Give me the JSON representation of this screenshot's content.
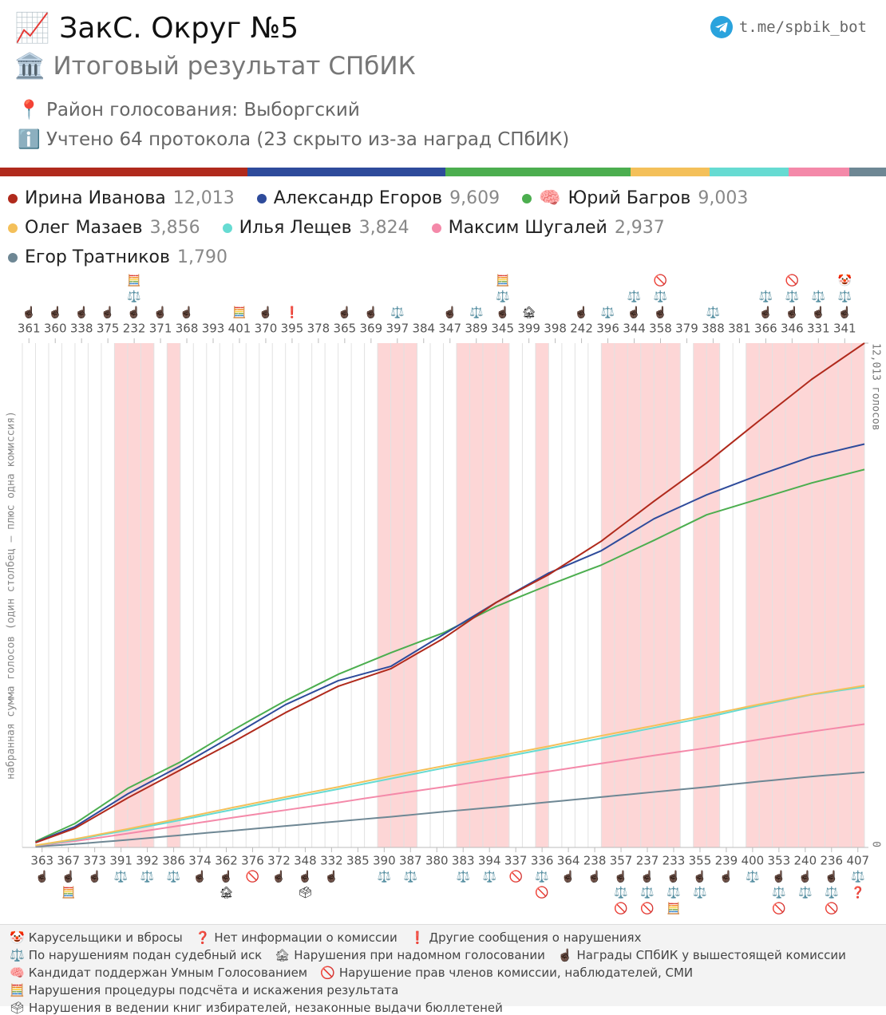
{
  "header": {
    "title_icon": "📈",
    "title": "ЗакС. Округ №5",
    "subtitle_icon": "🏛️",
    "subtitle": "Итоговый результат СПбИК",
    "district_icon": "📍",
    "district": "Район голосования: Выборгский",
    "count_icon": "ℹ️",
    "count": "Учтено 64 протокола (23 скрыто из-за наград СПбИК)",
    "link": "t.me/spbik_bot"
  },
  "chart_data": {
    "type": "line",
    "y_label": "набранная сумма голосов (один столбец – плюс одна комиссия)",
    "ylim": [
      0,
      12013
    ],
    "yticks": [
      0,
      {
        "value": 12013,
        "label": "12,013 голосов"
      }
    ],
    "shade_color": "#fdd6d6",
    "categories": [
      "361",
      "363",
      "360",
      "367",
      "338",
      "373",
      "375",
      "391",
      "232",
      "392",
      "371",
      "386",
      "368",
      "374",
      "393",
      "362",
      "401",
      "376",
      "370",
      "372",
      "395",
      "348",
      "378",
      "332",
      "365",
      "385",
      "369",
      "390",
      "397",
      "387",
      "384",
      "380",
      "347",
      "383",
      "389",
      "394",
      "345",
      "337",
      "399",
      "336",
      "398",
      "364",
      "242",
      "238",
      "396",
      "357",
      "344",
      "237",
      "358",
      "233",
      "379",
      "355",
      "388",
      "239",
      "381",
      "400",
      "366",
      "353",
      "346",
      "240",
      "331",
      "236",
      "341",
      "407"
    ],
    "shaded": [
      false,
      false,
      false,
      false,
      false,
      false,
      false,
      true,
      true,
      true,
      false,
      true,
      false,
      false,
      false,
      false,
      false,
      false,
      false,
      false,
      false,
      false,
      false,
      false,
      false,
      false,
      false,
      true,
      true,
      true,
      false,
      false,
      false,
      true,
      true,
      true,
      true,
      false,
      false,
      true,
      false,
      false,
      false,
      false,
      true,
      true,
      true,
      true,
      true,
      true,
      false,
      true,
      true,
      false,
      false,
      true,
      true,
      true,
      true,
      true,
      true,
      true,
      true,
      true
    ],
    "column_icons": [
      [
        "☝🏿"
      ],
      [
        "☝🏿"
      ],
      [
        "☝🏿"
      ],
      [
        "☝🏿",
        "🧮"
      ],
      [
        "☝🏿"
      ],
      [
        "☝🏿"
      ],
      [
        "☝🏿"
      ],
      [
        "⚖️"
      ],
      [
        "🧮",
        "⚖️",
        "☝🏿"
      ],
      [
        "⚖️"
      ],
      [
        "☝🏿"
      ],
      [
        "⚖️"
      ],
      [
        "☝🏿"
      ],
      [
        "☝🏿"
      ],
      [],
      [
        "☝🏿",
        "🏚"
      ],
      [
        "🧮"
      ],
      [
        "🚫"
      ],
      [
        "☝🏿"
      ],
      [
        "☝🏿"
      ],
      [
        "❗"
      ],
      [
        "☝🏿",
        "🗳"
      ],
      [],
      [
        "☝🏿"
      ],
      [
        "☝🏿"
      ],
      [],
      [
        "☝🏿"
      ],
      [
        "⚖️"
      ],
      [
        "⚖️"
      ],
      [
        "⚖️"
      ],
      [],
      [],
      [
        "☝🏿"
      ],
      [
        "⚖️"
      ],
      [
        "⚖️"
      ],
      [
        "⚖️"
      ],
      [
        "🧮",
        "⚖️",
        "☝🏿"
      ],
      [
        "🚫"
      ],
      [
        "🏚"
      ],
      [
        "⚖️",
        "🚫"
      ],
      [],
      [
        "☝🏿"
      ],
      [
        "☝🏿"
      ],
      [
        "☝🏿"
      ],
      [
        "⚖️"
      ],
      [
        "☝🏿",
        "⚖️",
        "🚫"
      ],
      [
        "⚖️",
        "☝🏿"
      ],
      [
        "☝🏿",
        "⚖️",
        "🚫"
      ],
      [
        "🚫",
        "⚖️",
        "☝🏿"
      ],
      [
        "☝🏿",
        "⚖️",
        "🧮"
      ],
      [],
      [
        "☝🏿",
        "⚖️"
      ],
      [
        "⚖️"
      ],
      [
        "☝🏿"
      ],
      [],
      [
        "⚖️"
      ],
      [
        "⚖️",
        "☝🏿"
      ],
      [
        "☝🏿",
        "⚖️",
        "🚫"
      ],
      [
        "🚫",
        "⚖️",
        "☝🏿"
      ],
      [
        "☝🏿",
        "⚖️"
      ],
      [
        "⚖️",
        "☝🏿"
      ],
      [
        "☝🏿",
        "⚖️",
        "🚫"
      ],
      [
        "🤡",
        "⚖️",
        "☝🏿"
      ],
      [
        "⚖️",
        "❓"
      ]
    ],
    "series": [
      {
        "name": "Ирина Иванова",
        "color": "#b02a1c",
        "total": {
          "value": 12013,
          "label": "12,013"
        },
        "values": [
          114,
          114,
          114,
          114,
          181,
          181,
          180,
          180,
          167,
          166,
          166,
          166,
          167,
          166,
          166,
          166,
          176,
          176,
          176,
          175,
          157,
          157,
          157,
          156,
          105,
          105,
          104,
          104,
          181,
          181,
          180,
          180,
          214,
          214,
          214,
          213,
          167,
          166,
          166,
          166,
          200,
          200,
          199,
          199,
          238,
          238,
          237,
          237,
          228,
          228,
          228,
          228,
          252,
          252,
          252,
          251,
          247,
          247,
          247,
          247,
          215,
          215,
          215,
          215
        ]
      },
      {
        "name": "Александр Егоров",
        "color": "#2e4b9b",
        "total": {
          "value": 9609,
          "label": "9,609"
        },
        "values": [
          124,
          124,
          123,
          123,
          195,
          195,
          195,
          194,
          167,
          166,
          166,
          166,
          181,
          181,
          180,
          180,
          186,
          185,
          185,
          185,
          143,
          143,
          142,
          142,
          86,
          86,
          85,
          85,
          190,
          190,
          190,
          190,
          190,
          190,
          190,
          190,
          176,
          176,
          176,
          175,
          133,
          133,
          133,
          133,
          190,
          190,
          190,
          190,
          143,
          143,
          142,
          142,
          119,
          119,
          119,
          118,
          110,
          109,
          109,
          109,
          75,
          75,
          75,
          74
        ]
      },
      {
        "name": "Юрий Багров",
        "badge": "🧠",
        "color": "#4cae4f",
        "total": {
          "value": 9003,
          "label": "9,003"
        },
        "values": [
          143,
          143,
          142,
          142,
          209,
          209,
          209,
          209,
          157,
          157,
          157,
          156,
          190,
          190,
          190,
          190,
          176,
          176,
          176,
          175,
          157,
          157,
          157,
          156,
          129,
          128,
          128,
          128,
          119,
          119,
          119,
          118,
          157,
          157,
          157,
          156,
          129,
          128,
          128,
          128,
          119,
          119,
          119,
          118,
          148,
          147,
          147,
          147,
          152,
          152,
          152,
          152,
          95,
          95,
          95,
          95,
          95,
          95,
          95,
          95,
          80,
          80,
          80,
          80
        ]
      },
      {
        "name": "Олег Мазаев",
        "color": "#f4c05a",
        "total": {
          "value": 3856,
          "label": "3,856"
        },
        "values": [
          50,
          50,
          50,
          50,
          60,
          60,
          60,
          60,
          63,
          63,
          62,
          62,
          65,
          65,
          65,
          65,
          63,
          63,
          62,
          62,
          60,
          60,
          60,
          60,
          65,
          65,
          65,
          65,
          60,
          60,
          60,
          60,
          58,
          58,
          57,
          57,
          60,
          60,
          60,
          60,
          63,
          63,
          62,
          62,
          60,
          60,
          60,
          60,
          63,
          63,
          62,
          62,
          65,
          65,
          65,
          65,
          60,
          60,
          60,
          60,
          52,
          52,
          51,
          51
        ]
      },
      {
        "name": "Илья Лещев",
        "color": "#66dbd2",
        "total": {
          "value": 3824,
          "label": "3,824"
        },
        "values": [
          45,
          45,
          45,
          45,
          58,
          58,
          57,
          57,
          60,
          60,
          60,
          60,
          63,
          63,
          62,
          62,
          63,
          63,
          62,
          62,
          60,
          60,
          60,
          60,
          63,
          63,
          62,
          62,
          63,
          63,
          62,
          62,
          58,
          58,
          57,
          57,
          60,
          60,
          60,
          60,
          60,
          60,
          60,
          60,
          63,
          63,
          62,
          62,
          63,
          63,
          62,
          62,
          70,
          70,
          70,
          70,
          65,
          65,
          65,
          65,
          46,
          46,
          46,
          46
        ]
      },
      {
        "name": "Максим Шугалей",
        "color": "#f489a9",
        "total": {
          "value": 2937,
          "label": "2,937"
        },
        "values": [
          38,
          38,
          37,
          37,
          45,
          45,
          45,
          45,
          48,
          48,
          47,
          47,
          48,
          48,
          47,
          47,
          45,
          45,
          45,
          45,
          45,
          45,
          45,
          45,
          48,
          48,
          47,
          47,
          45,
          45,
          45,
          45,
          48,
          48,
          47,
          47,
          45,
          45,
          45,
          45,
          48,
          48,
          47,
          47,
          48,
          48,
          47,
          47,
          45,
          45,
          45,
          45,
          50,
          50,
          50,
          50,
          48,
          48,
          47,
          47,
          45,
          44,
          44,
          44
        ]
      },
      {
        "name": "Егор Тратников",
        "color": "#6e8794",
        "total": {
          "value": 1790,
          "label": "1,790"
        },
        "values": [
          20,
          20,
          20,
          20,
          25,
          25,
          25,
          25,
          28,
          28,
          27,
          27,
          28,
          28,
          27,
          27,
          28,
          28,
          27,
          27,
          28,
          28,
          27,
          27,
          28,
          28,
          27,
          27,
          30,
          30,
          30,
          30,
          28,
          28,
          27,
          27,
          30,
          30,
          30,
          30,
          30,
          30,
          30,
          30,
          30,
          30,
          30,
          30,
          30,
          30,
          30,
          30,
          33,
          33,
          32,
          32,
          30,
          30,
          30,
          30,
          25,
          25,
          25,
          25
        ]
      }
    ]
  },
  "icon_legend": [
    {
      "icon": "🤡",
      "text": "Карусельщики и вбросы"
    },
    {
      "icon": "❓",
      "text": "Нет информации о комиссии"
    },
    {
      "icon": "❗",
      "text": "Другие сообщения о нарушениях"
    },
    {
      "icon": "⚖️",
      "text": "По нарушениям подан судебный иск"
    },
    {
      "icon": "🏚",
      "text": "Нарушения при надомном голосовании"
    },
    {
      "icon": "☝🏿",
      "text": "Награды СПбИК у вышестоящей комиссии"
    },
    {
      "icon": "🧠",
      "text": "Кандидат поддержан Умным Голосованием"
    },
    {
      "icon": "🚫",
      "text": "Нарушение прав членов комиссии, наблюдателей, СМИ"
    },
    {
      "icon": "🧮",
      "text": "Нарушения процедуры подсчёта и искажения результата"
    },
    {
      "icon": "🗳",
      "text": "Нарушения в ведении книг избирателей, незаконные выдачи бюллетеней"
    }
  ]
}
